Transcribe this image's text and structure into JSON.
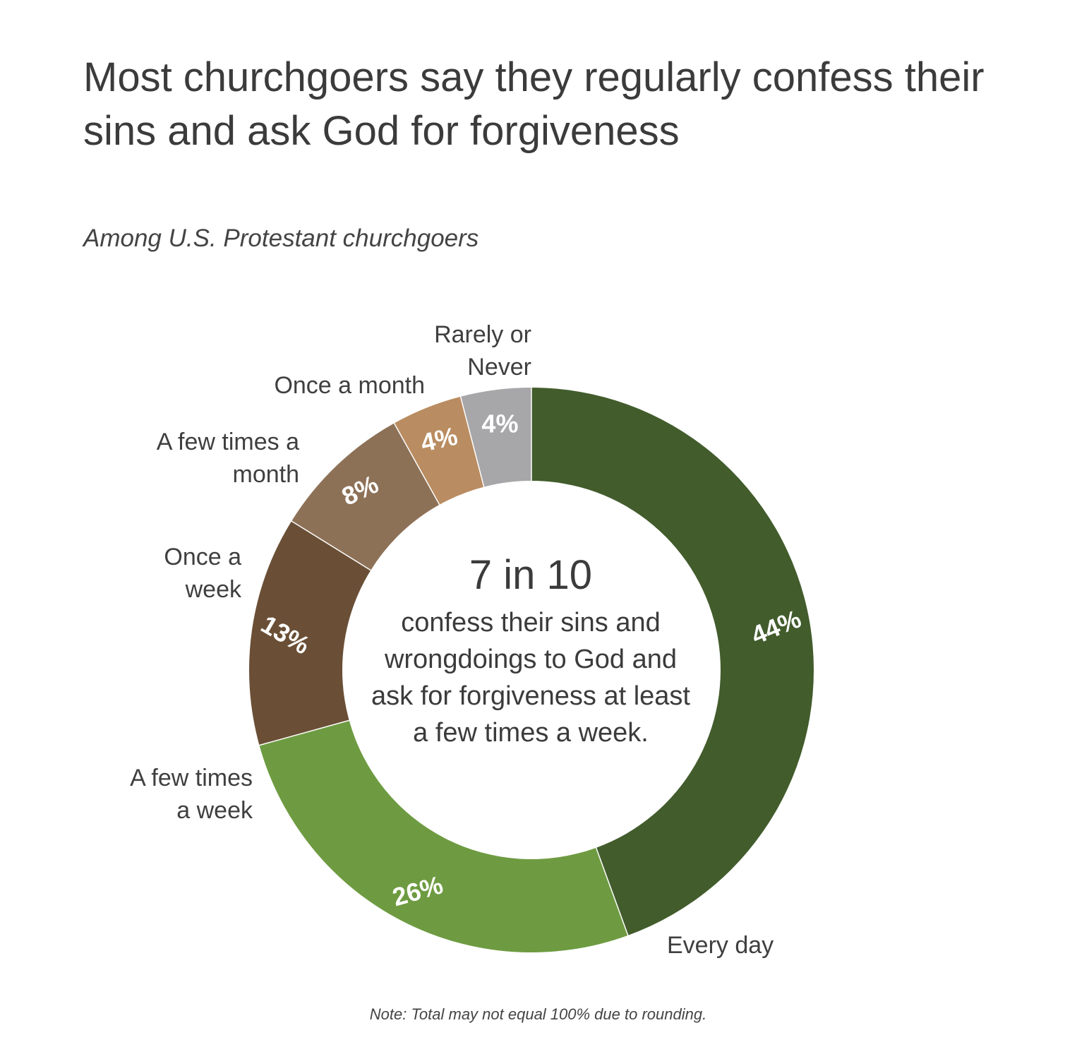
{
  "header": {
    "title": "Most churchgoers say they regularly confess their sins and ask God for forgiveness",
    "subtitle": "Among U.S. Protestant churchgoers"
  },
  "center": {
    "big": "7 in 10",
    "text": "confess their sins and wrongdoings to God and ask for forgiveness at least a few times a week."
  },
  "note": "Note: Total may not equal 100% due to rounding.",
  "chart_data": {
    "type": "pie",
    "variant": "donut",
    "title": "Most churchgoers say they regularly confess their sins and ask God for forgiveness",
    "subtitle": "Among U.S. Protestant churchgoers",
    "slices": [
      {
        "key": "every-day",
        "label": "Every day",
        "lines": [
          "Every day"
        ],
        "value": 44,
        "display": "44%",
        "color": "#425c2c"
      },
      {
        "key": "few-times-week",
        "label": "A few times a week",
        "lines": [
          "A few times",
          "a week"
        ],
        "value": 26,
        "display": "26%",
        "color": "#6e9b41"
      },
      {
        "key": "once-week",
        "label": "Once a week",
        "lines": [
          "Once a",
          "week"
        ],
        "value": 13,
        "display": "13%",
        "color": "#6a4f36"
      },
      {
        "key": "few-times-month",
        "label": "A few times a month",
        "lines": [
          "A few times a",
          "month"
        ],
        "value": 8,
        "display": "8%",
        "color": "#8d7157"
      },
      {
        "key": "once-month",
        "label": "Once a month",
        "lines": [
          "Once a month"
        ],
        "value": 4,
        "display": "4%",
        "color": "#b98c61"
      },
      {
        "key": "rarely-never",
        "label": "Rarely or Never",
        "lines": [
          "Rarely or",
          "Never"
        ],
        "value": 4,
        "display": "4%",
        "color": "#a7a6a9"
      }
    ]
  }
}
